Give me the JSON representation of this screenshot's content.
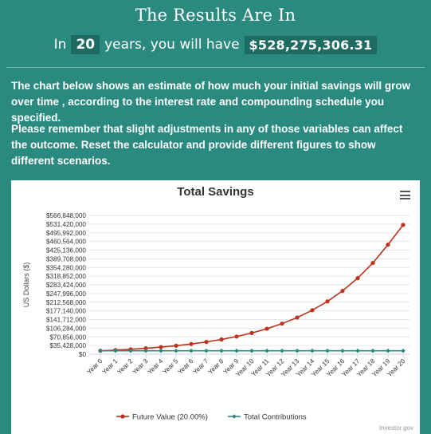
{
  "header": {
    "title": "The Results Are In",
    "prefix": "In",
    "years": "20",
    "middle": "years, you will have",
    "amount": "$528,275,306.31"
  },
  "paragraphs": {
    "p1": "The chart below shows an estimate of how much your initial savings will grow over time , according to the interest rate and compounding schedule you specified.",
    "p2": "Please remember that slight adjustments in any of those variables can affect the outcome. Reset the calculator and provide different figures to show different scenarios."
  },
  "chart": {
    "credit": "Investor.gov"
  },
  "chart_data": {
    "type": "line",
    "title": "Total Savings",
    "ylabel": "US Dollars ($)",
    "xlabel": "",
    "ylim": [
      0,
      566848000
    ],
    "grid": true,
    "legend_position": "bottom",
    "y_ticks": [
      "$0",
      "$35,428,000",
      "$70,856,000",
      "$106,284,000",
      "$141,712,000",
      "$177,140,000",
      "$212,568,000",
      "$247,996,000",
      "$283,424,000",
      "$318,852,000",
      "$354,280,000",
      "$389,708,000",
      "$425,136,000",
      "$460,564,000",
      "$495,992,000",
      "$531,420,000",
      "$566,848,000"
    ],
    "categories": [
      "Year 0",
      "Year 1",
      "Year 2",
      "Year 3",
      "Year 4",
      "Year 5",
      "Year 6",
      "Year 7",
      "Year 8",
      "Year 9",
      "Year 10",
      "Year 11",
      "Year 12",
      "Year 13",
      "Year 14",
      "Year 15",
      "Year 16",
      "Year 17",
      "Year 18",
      "Year 19",
      "Year 20"
    ],
    "series": [
      {
        "name": "Future Value (20.00%)",
        "color": "#c0311d",
        "values": [
          14000000,
          16800000,
          20160000,
          24192000,
          29030000,
          34836000,
          41803000,
          50164000,
          60197000,
          72236000,
          86684000,
          104020000,
          124824000,
          149789000,
          179747000,
          215696000,
          258835000,
          310602000,
          372723000,
          447267000,
          528275306
        ]
      },
      {
        "name": "Total Contributions",
        "color": "#2b8a80",
        "values": [
          14000000,
          14000000,
          14000000,
          14000000,
          14000000,
          14000000,
          14000000,
          14000000,
          14000000,
          14000000,
          14000000,
          14000000,
          14000000,
          14000000,
          14000000,
          14000000,
          14000000,
          14000000,
          14000000,
          14000000,
          14000000
        ]
      }
    ]
  }
}
